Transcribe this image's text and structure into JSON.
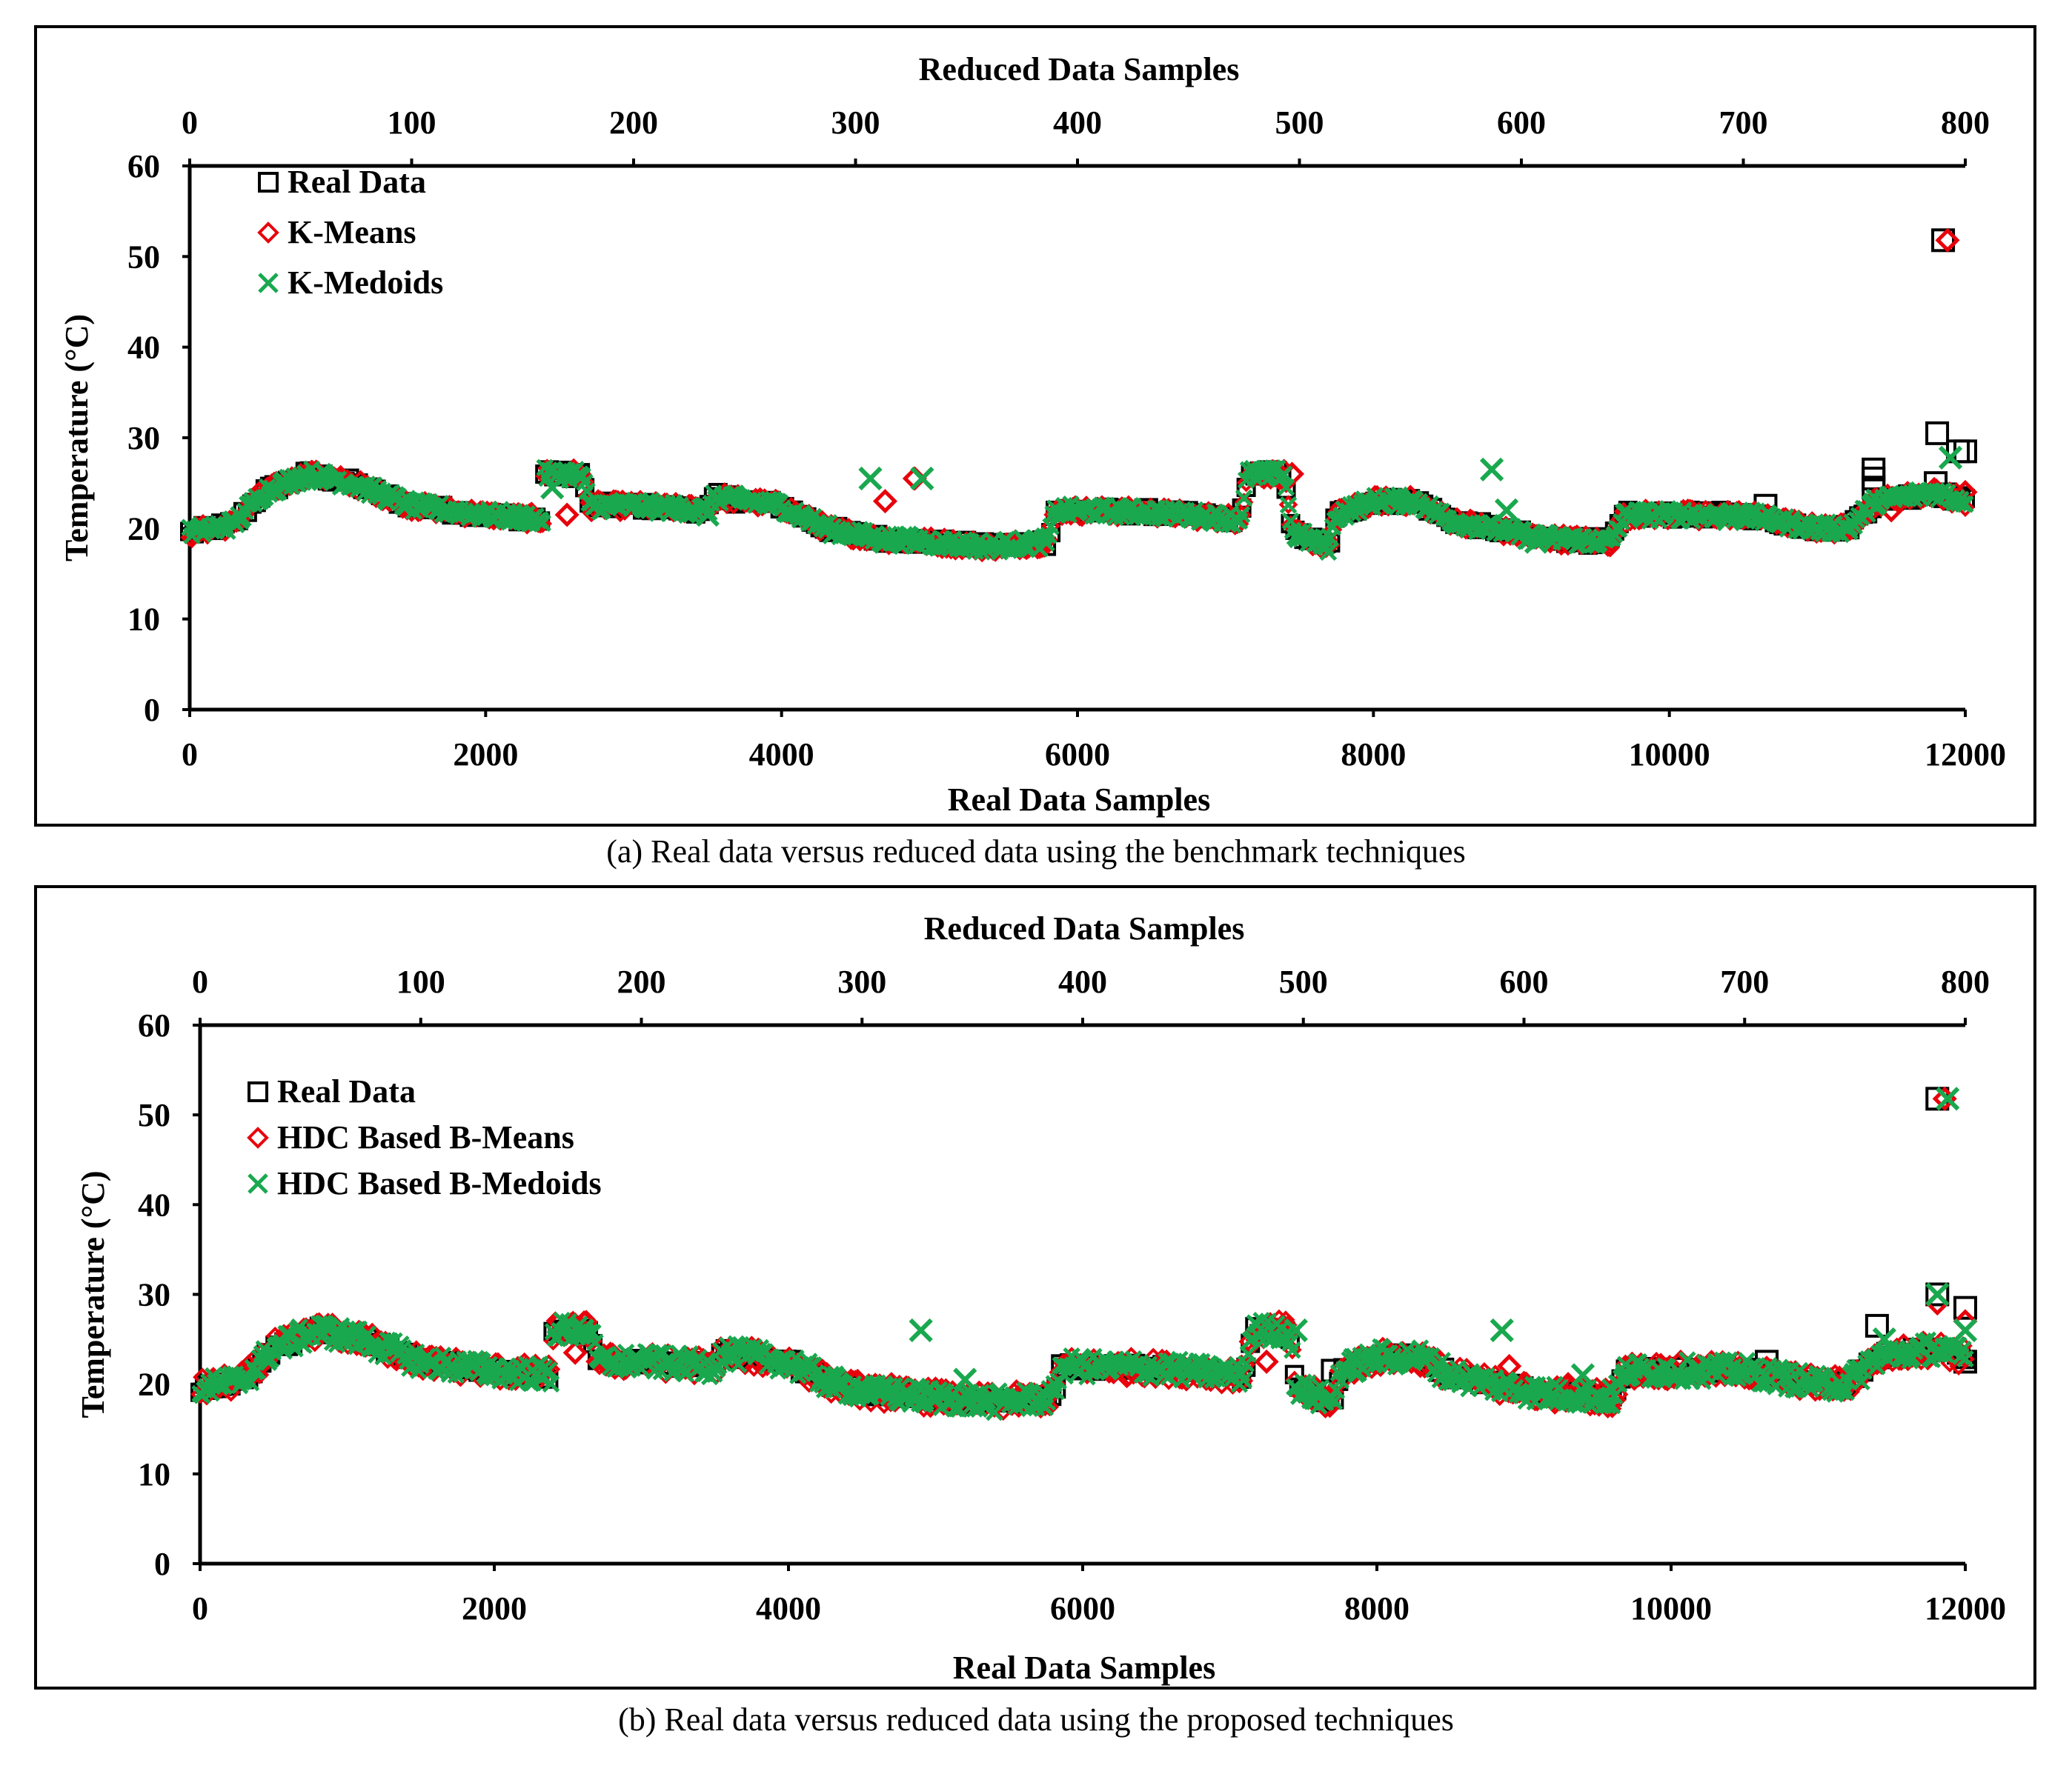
{
  "figure": {
    "caption_a": "(a) Real data versus reduced data using the benchmark techniques",
    "caption_b": "(b) Real data versus reduced data using the proposed techniques"
  },
  "colors": {
    "real": "#000000",
    "mean": "#e8000b",
    "medoid": "#1aa84f"
  },
  "chart_data": [
    {
      "type": "scatter",
      "panel": "a",
      "top_axis_title": "Reduced Data Samples",
      "bottom_axis_title": "Real Data Samples",
      "ylabel": "Temperature (°C)",
      "xlim": [
        0,
        12000
      ],
      "x2lim": [
        0,
        800
      ],
      "ylim": [
        0,
        60
      ],
      "x_ticks": [
        "0",
        "2000",
        "4000",
        "6000",
        "8000",
        "10000",
        "12000"
      ],
      "x2_ticks": [
        "0",
        "100",
        "200",
        "300",
        "400",
        "500",
        "600",
        "700",
        "800"
      ],
      "y_ticks": [
        "0",
        "10",
        "20",
        "30",
        "40",
        "50",
        "60"
      ],
      "legend": [
        "Real Data",
        "K-Means",
        "K-Medoids"
      ],
      "legend_position": "top-left",
      "series": [
        {
          "name": "Real Data",
          "marker": "square",
          "color": "#000000",
          "trend": [
            [
              0,
              19.5
            ],
            [
              300,
              20.5
            ],
            [
              500,
              24
            ],
            [
              800,
              26
            ],
            [
              1100,
              25
            ],
            [
              1500,
              22.5
            ],
            [
              2000,
              21.5
            ],
            [
              2390,
              21
            ],
            [
              2400,
              26
            ],
            [
              2650,
              26
            ],
            [
              2700,
              22.5
            ],
            [
              3000,
              22.5
            ],
            [
              3500,
              22
            ],
            [
              3550,
              23.5
            ],
            [
              4000,
              22.5
            ],
            [
              4300,
              20
            ],
            [
              4600,
              19
            ],
            [
              5000,
              18.5
            ],
            [
              5400,
              18
            ],
            [
              5800,
              18.5
            ],
            [
              5850,
              22
            ],
            [
              6500,
              21.8
            ],
            [
              7100,
              21
            ],
            [
              7150,
              26
            ],
            [
              7400,
              26
            ],
            [
              7450,
              19.5
            ],
            [
              7700,
              18
            ],
            [
              7750,
              21.5
            ],
            [
              8000,
              23
            ],
            [
              8300,
              23
            ],
            [
              8500,
              21
            ],
            [
              8800,
              20
            ],
            [
              9100,
              19
            ],
            [
              9600,
              18.5
            ],
            [
              9700,
              21.5
            ],
            [
              10500,
              21.5
            ],
            [
              11000,
              20
            ],
            [
              11200,
              20
            ],
            [
              11400,
              23
            ],
            [
              11800,
              24
            ],
            [
              12000,
              23
            ]
          ],
          "extra_points": [
            [
              11850,
              51.8
            ],
            [
              11810,
              30.5
            ],
            [
              11380,
              26.5
            ],
            [
              11380,
              25.5
            ],
            [
              11380,
              24.5
            ],
            [
              11950,
              28.5
            ],
            [
              12000,
              28.5
            ],
            [
              10650,
              22.5
            ],
            [
              11800,
              25
            ]
          ]
        },
        {
          "name": "K-Means",
          "marker": "diamond",
          "color": "#e8000b",
          "extra_points": [
            [
              11880,
              51.8
            ],
            [
              7450,
              26
            ],
            [
              4900,
              25.5
            ],
            [
              5400,
              18.2
            ],
            [
              9550,
              18.5
            ],
            [
              2550,
              21.5
            ],
            [
              4700,
              23
            ],
            [
              6900,
              21.5
            ],
            [
              9100,
              19
            ],
            [
              12000,
              24
            ],
            [
              11500,
              22
            ],
            [
              10200,
              21
            ]
          ]
        },
        {
          "name": "K-Medoids",
          "marker": "x",
          "color": "#1aa84f",
          "extra_points": [
            [
              11900,
              27.8
            ],
            [
              8800,
              26.5
            ],
            [
              4600,
              25.5
            ],
            [
              4950,
              25.5
            ],
            [
              7250,
              26
            ],
            [
              4700,
              18.5
            ],
            [
              9100,
              18.5
            ],
            [
              8900,
              22
            ],
            [
              10400,
              21
            ],
            [
              11200,
              20
            ],
            [
              3500,
              21.5
            ],
            [
              2450,
              24.5
            ]
          ]
        }
      ]
    },
    {
      "type": "scatter",
      "panel": "b",
      "top_axis_title": "Reduced Data Samples",
      "bottom_axis_title": "Real Data Samples",
      "ylabel": "Temperature (°C)",
      "xlim": [
        0,
        12000
      ],
      "x2lim": [
        0,
        800
      ],
      "ylim": [
        0,
        60
      ],
      "x_ticks": [
        "0",
        "2000",
        "4000",
        "6000",
        "8000",
        "10000",
        "12000"
      ],
      "x2_ticks": [
        "0",
        "100",
        "200",
        "300",
        "400",
        "500",
        "600",
        "700",
        "800"
      ],
      "y_ticks": [
        "0",
        "10",
        "20",
        "30",
        "40",
        "50",
        "60"
      ],
      "legend": [
        "Real Data",
        "HDC Based B-Means",
        "HDC Based B-Medoids"
      ],
      "legend_position": "top-left",
      "series": [
        {
          "name": "Real Data",
          "marker": "square",
          "color": "#000000",
          "trend": [
            [
              0,
              19.5
            ],
            [
              300,
              20.5
            ],
            [
              500,
              24
            ],
            [
              800,
              26
            ],
            [
              1100,
              25
            ],
            [
              1500,
              22.5
            ],
            [
              2000,
              21.5
            ],
            [
              2390,
              21
            ],
            [
              2400,
              26
            ],
            [
              2650,
              26
            ],
            [
              2700,
              22.5
            ],
            [
              3000,
              22.5
            ],
            [
              3500,
              22
            ],
            [
              3550,
              23.5
            ],
            [
              4000,
              22.5
            ],
            [
              4300,
              20
            ],
            [
              4600,
              19
            ],
            [
              5000,
              18.5
            ],
            [
              5400,
              18
            ],
            [
              5800,
              18.5
            ],
            [
              5850,
              22
            ],
            [
              6500,
              21.8
            ],
            [
              7100,
              21
            ],
            [
              7150,
              26
            ],
            [
              7400,
              26
            ],
            [
              7450,
              19.5
            ],
            [
              7700,
              18
            ],
            [
              7750,
              21.5
            ],
            [
              8000,
              23
            ],
            [
              8300,
              23
            ],
            [
              8500,
              21
            ],
            [
              8800,
              20
            ],
            [
              9100,
              19
            ],
            [
              9600,
              18.5
            ],
            [
              9700,
              21.5
            ],
            [
              10500,
              21.5
            ],
            [
              11000,
              20
            ],
            [
              11200,
              20
            ],
            [
              11400,
              23
            ],
            [
              11800,
              24
            ],
            [
              12000,
              23
            ]
          ],
          "extra_points": [
            [
              11810,
              51.8
            ],
            [
              11810,
              30
            ],
            [
              11400,
              26.5
            ],
            [
              12000,
              28.5
            ],
            [
              12000,
              22.5
            ],
            [
              10650,
              22.5
            ],
            [
              7700,
              21.5
            ]
          ]
        },
        {
          "name": "HDC Based B-Means",
          "marker": "diamond",
          "color": "#e8000b",
          "extra_points": [
            [
              11860,
              51.8
            ],
            [
              11810,
              29
            ],
            [
              4700,
              20
            ],
            [
              5000,
              19.5
            ],
            [
              5300,
              19
            ],
            [
              8900,
              22
            ],
            [
              9300,
              20
            ],
            [
              7250,
              22.5
            ],
            [
              2550,
              23.5
            ],
            [
              12000,
              27
            ],
            [
              10200,
              21.5
            ],
            [
              6200,
              21.5
            ]
          ]
        },
        {
          "name": "HDC Based B-Medoids",
          "marker": "x",
          "color": "#1aa84f",
          "extra_points": [
            [
              11880,
              51.8
            ],
            [
              11810,
              30
            ],
            [
              4900,
              26
            ],
            [
              7450,
              26
            ],
            [
              8850,
              26
            ],
            [
              2600,
              26
            ],
            [
              4700,
              19.5
            ],
            [
              5200,
              20.5
            ],
            [
              9400,
              21
            ],
            [
              12000,
              26
            ],
            [
              11450,
              25
            ],
            [
              9700,
              21
            ]
          ]
        }
      ]
    }
  ]
}
